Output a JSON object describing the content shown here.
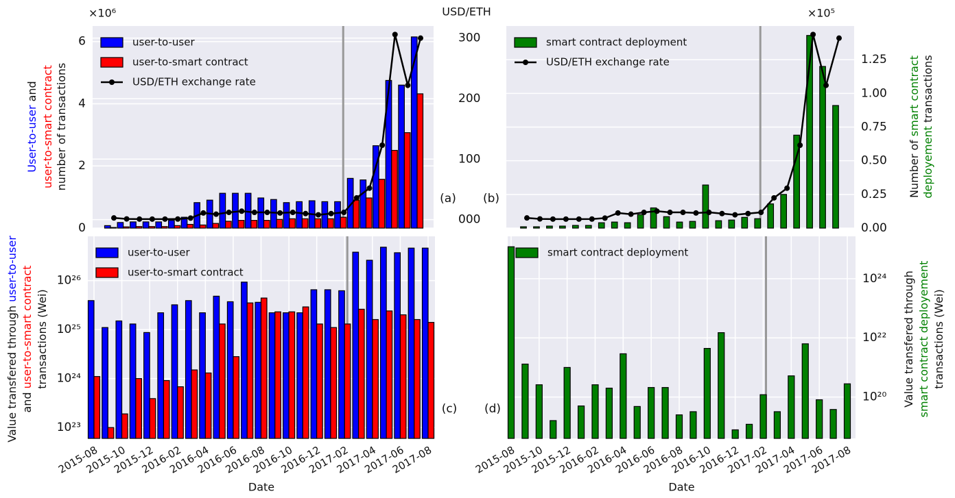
{
  "chart_data": [
    {
      "type": "bar",
      "panel_label": "(a)",
      "multiplier": "×10⁶",
      "yaxis_side": "left",
      "ylabel_lines": [
        [
          {
            "text": "User-to-user",
            "color": "#0000ff"
          },
          {
            "text": " and",
            "color": "#111111"
          }
        ],
        [
          {
            "text": "user-to-smart contract",
            "color": "#ff0000"
          }
        ],
        [
          {
            "text": "number of transactions",
            "color": "#111111"
          }
        ]
      ],
      "y2label": "USD/ETH",
      "ylim": [
        0,
        6.5
      ],
      "yticks": [
        0,
        2,
        4,
        6
      ],
      "y2lim": [
        -14,
        320
      ],
      "y2ticks": [
        {
          "value": 0,
          "label": "000"
        },
        100,
        200,
        300
      ],
      "grid": true,
      "legend": "upper left",
      "vline_at": "2017-02",
      "series": [
        {
          "name": "user-to-user",
          "color": "#0000ff",
          "values": [
            0.08,
            0.18,
            0.2,
            0.2,
            0.2,
            0.25,
            0.35,
            0.82,
            0.9,
            1.12,
            1.12,
            1.12,
            0.97,
            0.92,
            0.82,
            0.85,
            0.88,
            0.85,
            0.85,
            1.6,
            1.55,
            2.65,
            4.75,
            4.6,
            6.15
          ]
        },
        {
          "name": "user-to-smart contract",
          "color": "#ff0000",
          "values": [
            0.02,
            0.04,
            0.05,
            0.05,
            0.05,
            0.08,
            0.12,
            0.1,
            0.15,
            0.22,
            0.25,
            0.25,
            0.25,
            0.28,
            0.3,
            0.3,
            0.3,
            0.3,
            0.35,
            0.9,
            0.97,
            1.57,
            2.5,
            3.07,
            4.32
          ]
        },
        {
          "name": "USD/ETH exchange rate",
          "color": "#000000",
          "type": "line",
          "axis": "y2",
          "values": [
            2.8,
            1.2,
            0.9,
            0.9,
            0.9,
            1.0,
            2.5,
            11,
            9,
            12,
            14,
            12,
            12,
            11,
            12,
            10,
            8,
            10,
            12,
            36,
            52,
            123,
            306,
            222,
            300
          ]
        }
      ]
    },
    {
      "type": "bar",
      "panel_label": "(b)",
      "multiplier": "×10⁵",
      "yaxis_side": "right",
      "ylabel_lines": [
        [
          {
            "text": "Number of ",
            "color": "#111111"
          },
          {
            "text": "smart contract",
            "color": "#008000"
          }
        ],
        [
          {
            "text": "deployement",
            "color": "#008000"
          },
          {
            "text": " transactions",
            "color": "#111111"
          }
        ]
      ],
      "ylim": [
        0,
        1.5
      ],
      "yticks": [
        {
          "value": 0,
          "label": "0.00"
        },
        0.25,
        {
          "value": 0.5,
          "label": "0.50"
        },
        0.75,
        {
          "value": 1,
          "label": "1.00"
        },
        1.25
      ],
      "y2lim": [
        -14,
        320
      ],
      "grid": true,
      "legend": "upper left",
      "vline_at": "2017-02",
      "series": [
        {
          "name": "smart contract deployment",
          "color": "#008000",
          "values": [
            0.01,
            0.01,
            0.015,
            0.015,
            0.02,
            0.02,
            0.04,
            0.045,
            0.04,
            0.1,
            0.15,
            0.085,
            0.045,
            0.05,
            0.32,
            0.055,
            0.06,
            0.08,
            0.07,
            0.18,
            0.25,
            0.69,
            1.43,
            1.2,
            0.91
          ]
        },
        {
          "name": "USD/ETH exchange rate",
          "color": "#000000",
          "type": "line",
          "axis": "y2",
          "values": [
            2.8,
            1.2,
            0.9,
            0.9,
            0.9,
            1.0,
            2.5,
            11,
            9,
            12,
            14,
            12,
            12,
            11,
            12,
            10,
            8,
            10,
            12,
            36,
            52,
            123,
            306,
            222,
            300
          ]
        }
      ]
    },
    {
      "type": "bar",
      "panel_label": "(c)",
      "xlabel": "Date",
      "yaxis_side": "left",
      "log_scale": true,
      "categories": [
        "2015-08",
        null,
        "2015-10",
        null,
        "2015-12",
        null,
        "2016-02",
        null,
        "2016-04",
        null,
        "2016-06",
        null,
        "2016-08",
        null,
        "2016-10",
        null,
        "2016-12",
        null,
        "2017-02",
        null,
        "2017-04",
        null,
        "2017-06",
        null,
        "2017-08"
      ],
      "ylabel_lines": [
        [
          {
            "text": "Value transfered through ",
            "color": "#111111"
          },
          {
            "text": "user-to-user",
            "color": "#0000ff"
          }
        ],
        [
          {
            "text": "and ",
            "color": "#111111"
          },
          {
            "text": "user-to-smart contract",
            "color": "#ff0000"
          }
        ],
        [
          {
            "text": "transactions (Wei)",
            "color": "#111111"
          }
        ]
      ],
      "ylim": [
        6e+22,
        8e+26
      ],
      "yticks": [
        {
          "value": 1e+23,
          "label": "10²³"
        },
        {
          "value": 1e+24,
          "label": "10²⁴"
        },
        {
          "value": 1e+25,
          "label": "10²⁵"
        },
        {
          "value": 1e+26,
          "label": "10²⁶"
        }
      ],
      "grid": true,
      "legend": "upper left",
      "vline_at": "2017-02",
      "series": [
        {
          "name": "user-to-user",
          "color": "#0000ff",
          "values": [
            3.9e+25,
            1.1e+25,
            1.5e+25,
            1.3e+25,
            8.7e+24,
            2.2e+25,
            3.2e+25,
            3.9e+25,
            2.2e+25,
            4.8e+25,
            3.7e+25,
            9.3e+25,
            3.6e+25,
            2.2e+25,
            2.2e+25,
            2.2e+25,
            6.5e+25,
            6.5e+25,
            6.2e+25,
            3.8e+26,
            2.6e+26,
            4.8e+26,
            3.7e+26,
            4.6e+26,
            4.6e+26
          ]
        },
        {
          "name": "user-to-smart contract",
          "color": "#ff0000",
          "values": [
            1.1e+24,
            1e+23,
            1.9e+23,
            1e+24,
            3.9e+23,
            9.1e+23,
            6.8e+23,
            1.5e+24,
            1.3e+24,
            1.3e+25,
            2.8e+24,
            3.5e+25,
            4.4e+25,
            2.3e+25,
            2.3e+25,
            2.9e+25,
            1.3e+25,
            1.1e+25,
            1.3e+25,
            2.6e+25,
            1.6e+25,
            2.4e+25,
            2e+25,
            1.6e+25,
            1.4e+25
          ]
        }
      ]
    },
    {
      "type": "bar",
      "panel_label": "(d)",
      "xlabel": "Date",
      "yaxis_side": "right",
      "log_scale": true,
      "categories": [
        "2015-08",
        null,
        "2015-10",
        null,
        "2015-12",
        null,
        "2016-02",
        null,
        "2016-04",
        null,
        "2016-06",
        null,
        "2016-08",
        null,
        "2016-10",
        null,
        "2016-12",
        null,
        "2017-02",
        null,
        "2017-04",
        null,
        "2017-06",
        null,
        "2017-08"
      ],
      "ylabel_lines": [
        [
          {
            "text": "Value transfered through",
            "color": "#111111"
          }
        ],
        [
          {
            "text": "smart contract deployement",
            "color": "#008000"
          }
        ],
        [
          {
            "text": "transactions (Wei)",
            "color": "#111111"
          }
        ]
      ],
      "ylim": [
        4e+18,
        2.7e+25
      ],
      "yticks": [
        {
          "value": 1e+20,
          "label": "10²⁰"
        },
        {
          "value": 1e+22,
          "label": "10²²"
        },
        {
          "value": 1e+24,
          "label": "10²⁴"
        }
      ],
      "grid": true,
      "legend": "upper left",
      "vline_at": "2017-02",
      "series": [
        {
          "name": "smart contract deployment",
          "color": "#008000",
          "values": [
            1.2e+25,
            1.3e+21,
            2.6e+20,
            1.6e+19,
            1e+21,
            5e+19,
            2.6e+20,
            2e+20,
            2.9e+21,
            4.8e+19,
            2.1e+20,
            2.1e+20,
            2.5e+19,
            3.2e+19,
            4.4e+21,
            1.5e+22,
            7.8e+18,
            1.2e+19,
            1.2e+20,
            3.2e+19,
            5.2e+20,
            6.3e+21,
            8.1e+19,
            3.8e+19,
            2.8e+20
          ]
        }
      ]
    }
  ]
}
